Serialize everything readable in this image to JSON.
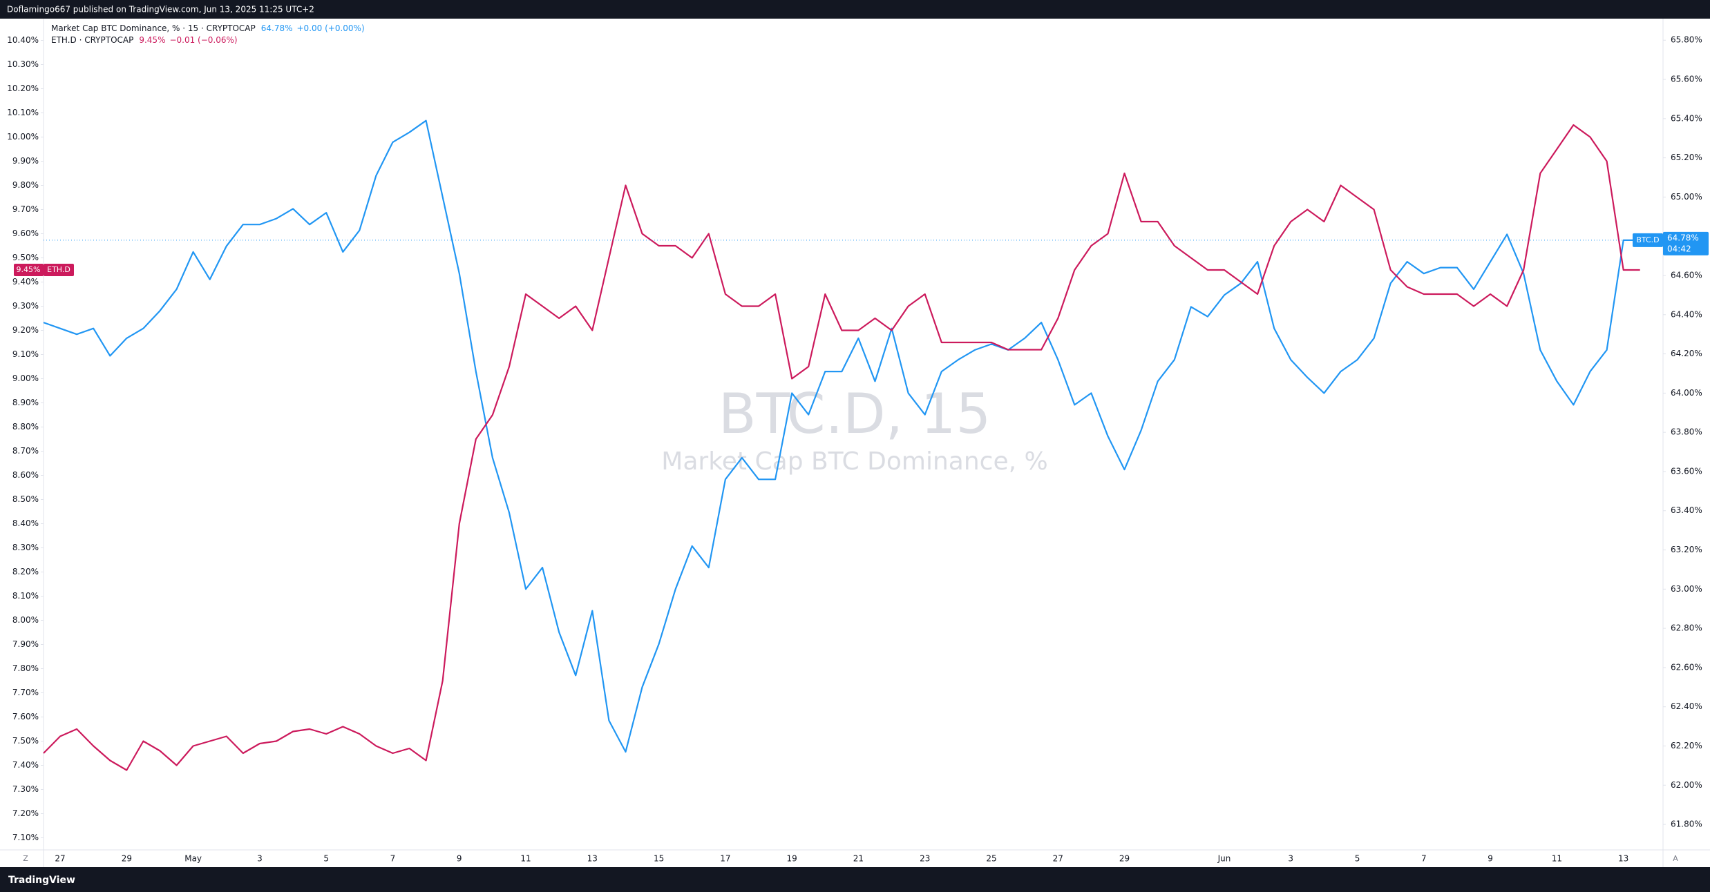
{
  "header": "Doflamingo667 published on TradingView.com, Jun 13, 2025 11:25 UTC+2",
  "footer": "TradingView",
  "chart_data": {
    "type": "line",
    "watermark_title": "BTC.D, 15",
    "watermark_subtitle": "Market Cap BTC Dominance, %",
    "corner_left": "Z",
    "corner_right": "A",
    "grid": false,
    "categories": [
      null,
      "27",
      null,
      null,
      null,
      "29",
      null,
      null,
      null,
      "May",
      null,
      null,
      null,
      "3",
      null,
      null,
      null,
      "5",
      null,
      null,
      null,
      "7",
      null,
      null,
      null,
      "9",
      null,
      null,
      null,
      "11",
      null,
      null,
      null,
      "13",
      null,
      null,
      null,
      "15",
      null,
      null,
      null,
      "17",
      null,
      null,
      null,
      "19",
      null,
      null,
      null,
      "21",
      null,
      null,
      null,
      "23",
      null,
      null,
      null,
      "25",
      null,
      null,
      null,
      "27",
      null,
      null,
      null,
      "29",
      null,
      null,
      null,
      null,
      null,
      "Jun",
      null,
      null,
      null,
      "3",
      null,
      null,
      null,
      "5",
      null,
      null,
      null,
      "7",
      null,
      null,
      null,
      "9",
      null,
      null,
      null,
      "11",
      null,
      null,
      null,
      "13",
      null
    ],
    "ylim": [
      7.05,
      10.49
    ],
    "yticks": [
      {
        "value": 7.1,
        "label": "7.10%"
      },
      {
        "value": 7.2,
        "label": "7.20%"
      },
      {
        "value": 7.3,
        "label": "7.30%"
      },
      {
        "value": 7.4,
        "label": "7.40%"
      },
      {
        "value": 7.5,
        "label": "7.50%"
      },
      {
        "value": 7.6,
        "label": "7.60%"
      },
      {
        "value": 7.7,
        "label": "7.70%"
      },
      {
        "value": 7.8,
        "label": "7.80%"
      },
      {
        "value": 7.9,
        "label": "7.90%"
      },
      {
        "value": 8.0,
        "label": "8.00%"
      },
      {
        "value": 8.1,
        "label": "8.10%"
      },
      {
        "value": 8.2,
        "label": "8.20%"
      },
      {
        "value": 8.3,
        "label": "8.30%"
      },
      {
        "value": 8.4,
        "label": "8.40%"
      },
      {
        "value": 8.5,
        "label": "8.50%"
      },
      {
        "value": 8.6,
        "label": "8.60%"
      },
      {
        "value": 8.7,
        "label": "8.70%"
      },
      {
        "value": 8.8,
        "label": "8.80%"
      },
      {
        "value": 8.9,
        "label": "8.90%"
      },
      {
        "value": 9.0,
        "label": "9.00%"
      },
      {
        "value": 9.1,
        "label": "9.10%"
      },
      {
        "value": 9.2,
        "label": "9.20%"
      },
      {
        "value": 9.3,
        "label": "9.30%"
      },
      {
        "value": 9.4,
        "label": "9.40%"
      },
      {
        "value": 9.5,
        "label": "9.50%"
      },
      {
        "value": 9.6,
        "label": "9.60%"
      },
      {
        "value": 9.7,
        "label": "9.70%"
      },
      {
        "value": 9.8,
        "label": "9.80%"
      },
      {
        "value": 9.9,
        "label": "9.90%"
      },
      {
        "value": 10.0,
        "label": "10.00%"
      },
      {
        "value": 10.1,
        "label": "10.10%"
      },
      {
        "value": 10.2,
        "label": "10.20%"
      },
      {
        "value": 10.3,
        "label": "10.30%"
      },
      {
        "value": 10.4,
        "label": "10.40%"
      }
    ],
    "y2lim": [
      61.67,
      65.91
    ],
    "y2ticks": [
      {
        "value": 61.8,
        "label": "61.80%"
      },
      {
        "value": 62.0,
        "label": "62.00%"
      },
      {
        "value": 62.2,
        "label": "62.20%"
      },
      {
        "value": 62.4,
        "label": "62.40%"
      },
      {
        "value": 62.6,
        "label": "62.60%"
      },
      {
        "value": 62.8,
        "label": "62.80%"
      },
      {
        "value": 63.0,
        "label": "63.00%"
      },
      {
        "value": 63.2,
        "label": "63.20%"
      },
      {
        "value": 63.4,
        "label": "63.40%"
      },
      {
        "value": 63.6,
        "label": "63.60%"
      },
      {
        "value": 63.8,
        "label": "63.80%"
      },
      {
        "value": 64.0,
        "label": "64.00%"
      },
      {
        "value": 64.2,
        "label": "64.20%"
      },
      {
        "value": 64.4,
        "label": "64.40%"
      },
      {
        "value": 64.6,
        "label": "64.60%"
      },
      {
        "value": 64.8,
        "label": "64.80%"
      },
      {
        "value": 65.0,
        "label": "65.00%"
      },
      {
        "value": 65.2,
        "label": "65.20%"
      },
      {
        "value": 65.4,
        "label": "65.40%"
      },
      {
        "value": 65.6,
        "label": "65.60%"
      },
      {
        "value": 65.8,
        "label": "65.80%"
      }
    ],
    "series": [
      {
        "name": "Market Cap BTC Dominance, % · 15 · CRYPTOCAP",
        "tag": "BTC.D",
        "axis": "y2",
        "color": "#2196f3",
        "last": {
          "value": 64.78,
          "label": "64.78%"
        },
        "change": "+0.00 (+0.00%)",
        "countdown": "04:42",
        "values": [
          64.36,
          64.33,
          64.3,
          64.33,
          64.19,
          64.28,
          64.33,
          64.42,
          64.53,
          64.72,
          64.58,
          64.75,
          64.86,
          64.86,
          64.89,
          64.94,
          64.86,
          64.92,
          64.72,
          64.83,
          65.11,
          65.28,
          65.33,
          65.39,
          65.0,
          64.61,
          64.11,
          63.67,
          63.39,
          63.0,
          63.11,
          62.78,
          62.56,
          62.89,
          62.33,
          62.17,
          62.5,
          62.72,
          63.0,
          63.22,
          63.11,
          63.56,
          63.67,
          63.56,
          63.56,
          64.0,
          63.89,
          64.11,
          64.11,
          64.28,
          64.06,
          64.33,
          64.0,
          63.89,
          64.11,
          64.17,
          64.22,
          64.25,
          64.22,
          64.28,
          64.36,
          64.17,
          63.94,
          64.0,
          63.78,
          63.61,
          63.81,
          64.06,
          64.17,
          64.44,
          64.39,
          64.5,
          64.56,
          64.67,
          64.33,
          64.17,
          64.08,
          64.0,
          64.11,
          64.17,
          64.28,
          64.56,
          64.67,
          64.61,
          64.64,
          64.64,
          64.53,
          64.67,
          64.81,
          64.61,
          64.22,
          64.06,
          63.94,
          64.11,
          64.22,
          64.78,
          64.78
        ]
      },
      {
        "name": "ETH.D · CRYPTOCAP",
        "tag": "ETH.D",
        "axis": "y",
        "color": "#cc1a5c",
        "last": {
          "value": 9.45,
          "label": "9.45%"
        },
        "change": "−0.01 (−0.06%)",
        "values": [
          7.45,
          7.52,
          7.55,
          7.48,
          7.42,
          7.38,
          7.5,
          7.46,
          7.4,
          7.48,
          7.5,
          7.52,
          7.45,
          7.49,
          7.5,
          7.54,
          7.55,
          7.53,
          7.56,
          7.53,
          7.48,
          7.45,
          7.47,
          7.42,
          7.75,
          8.4,
          8.75,
          8.85,
          9.05,
          9.35,
          9.3,
          9.25,
          9.3,
          9.2,
          9.5,
          9.8,
          9.6,
          9.55,
          9.55,
          9.5,
          9.6,
          9.35,
          9.3,
          9.3,
          9.35,
          9.0,
          9.05,
          9.35,
          9.2,
          9.2,
          9.25,
          9.2,
          9.3,
          9.35,
          9.15,
          9.15,
          9.15,
          9.15,
          9.12,
          9.12,
          9.12,
          9.25,
          9.45,
          9.55,
          9.6,
          9.85,
          9.65,
          9.65,
          9.55,
          9.5,
          9.45,
          9.45,
          9.4,
          9.35,
          9.55,
          9.65,
          9.7,
          9.65,
          9.8,
          9.75,
          9.7,
          9.45,
          9.38,
          9.35,
          9.35,
          9.35,
          9.3,
          9.35,
          9.3,
          9.45,
          9.85,
          9.95,
          10.05,
          10.0,
          9.9,
          9.45,
          9.45
        ]
      }
    ]
  }
}
